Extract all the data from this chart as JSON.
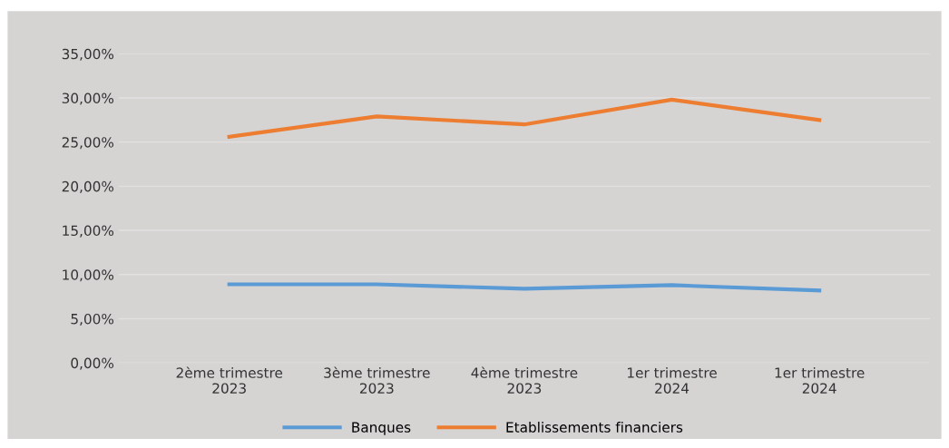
{
  "chart_data": {
    "type": "line",
    "categories": [
      "2ème trimestre\n2023",
      "3ème trimestre\n2023",
      "4ème trimestre\n2023",
      "1er trimestre\n2024",
      "1er trimestre\n2024"
    ],
    "series": [
      {
        "name": "Banques",
        "color": "#5b9bd5",
        "values": [
          8.9,
          8.9,
          8.4,
          8.8,
          8.2
        ]
      },
      {
        "name": "Etablissements financiers",
        "color": "#ed7d31",
        "values": [
          25.6,
          27.9,
          27.0,
          29.8,
          27.5
        ]
      }
    ],
    "ylim": [
      0,
      35
    ],
    "yticks": [
      {
        "value": 0,
        "label": "0,00%"
      },
      {
        "value": 5,
        "label": "5,00%"
      },
      {
        "value": 10,
        "label": "10,00%"
      },
      {
        "value": 15,
        "label": "15,00%"
      },
      {
        "value": 20,
        "label": "20,00%"
      },
      {
        "value": 25,
        "label": "25,00%"
      },
      {
        "value": 30,
        "label": "30,00%"
      },
      {
        "value": 35,
        "label": "35,00%"
      }
    ],
    "grid": "y",
    "legend": "bottom",
    "marker": "none",
    "line_style": "solid"
  }
}
